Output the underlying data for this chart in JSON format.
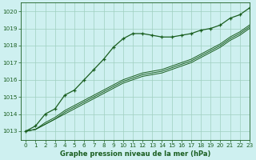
{
  "title": "Graphe pression niveau de la mer (hPa)",
  "bg_color": "#cef0f0",
  "grid_color": "#a0cfc0",
  "line_color": "#1a5e20",
  "xlim": [
    -0.5,
    23
  ],
  "ylim": [
    1012.5,
    1020.5
  ],
  "yticks": [
    1013,
    1014,
    1015,
    1016,
    1017,
    1018,
    1019,
    1020
  ],
  "xticks": [
    0,
    1,
    2,
    3,
    4,
    5,
    6,
    7,
    8,
    9,
    10,
    11,
    12,
    13,
    14,
    15,
    16,
    17,
    18,
    19,
    20,
    21,
    22,
    23
  ],
  "series_marked": [
    1013.0,
    1013.3,
    1014.0,
    1014.3,
    1015.1,
    1015.4,
    1016.0,
    1016.6,
    1017.2,
    1017.9,
    1018.4,
    1018.7,
    1018.7,
    1018.6,
    1018.5,
    1018.5,
    1018.6,
    1018.7,
    1018.9,
    1019.0,
    1019.2,
    1019.6,
    1019.8,
    1020.2
  ],
  "series_plain": [
    [
      1013.0,
      1013.1,
      1013.5,
      1013.8,
      1014.2,
      1014.5,
      1014.8,
      1015.1,
      1015.4,
      1015.7,
      1016.0,
      1016.2,
      1016.4,
      1016.5,
      1016.6,
      1016.8,
      1017.0,
      1017.2,
      1017.5,
      1017.8,
      1018.1,
      1018.5,
      1018.8,
      1019.2
    ],
    [
      1013.0,
      1013.1,
      1013.4,
      1013.7,
      1014.1,
      1014.4,
      1014.7,
      1015.0,
      1015.3,
      1015.6,
      1015.9,
      1016.1,
      1016.3,
      1016.4,
      1016.5,
      1016.7,
      1016.9,
      1017.1,
      1017.4,
      1017.7,
      1018.0,
      1018.4,
      1018.7,
      1019.1
    ],
    [
      1013.0,
      1013.1,
      1013.4,
      1013.7,
      1014.0,
      1014.3,
      1014.6,
      1014.9,
      1015.2,
      1015.5,
      1015.8,
      1016.0,
      1016.2,
      1016.3,
      1016.4,
      1016.6,
      1016.8,
      1017.0,
      1017.3,
      1017.6,
      1017.9,
      1018.3,
      1018.6,
      1019.0
    ]
  ],
  "title_fontsize": 6.0,
  "tick_fontsize": 5.2
}
